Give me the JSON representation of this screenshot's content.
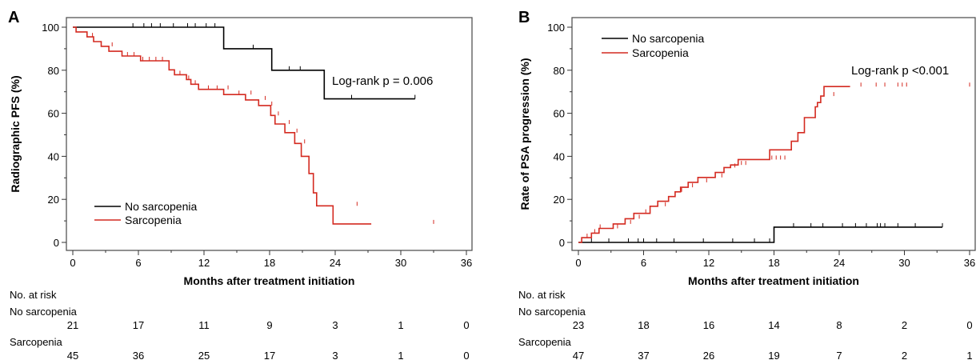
{
  "chart_data": [
    {
      "type": "line",
      "panel_label": "A",
      "xlabel": "Months after treatment initiation",
      "ylabel": "Radiographic PFS (%)",
      "xlim": [
        0,
        36
      ],
      "ylim": [
        0,
        100
      ],
      "xticks": [
        "0",
        "6",
        "12",
        "18",
        "24",
        "30",
        "36"
      ],
      "yticks": [
        "0",
        "20",
        "40",
        "60",
        "80",
        "100"
      ],
      "grid": false,
      "legend_position": "bottom-left",
      "annotation": "Log-rank p = 0.006",
      "series": [
        {
          "name": "No sarcopenia",
          "color": "#000000",
          "step_x": [
            0,
            13.8,
            13.8,
            18.2,
            18.2,
            23.0,
            23.0,
            31.3
          ],
          "step_y": [
            100,
            100,
            90,
            90,
            80,
            80,
            66.7,
            66.7
          ],
          "censor_x": [
            5.5,
            6.5,
            7.2,
            8.0,
            9.2,
            10.5,
            11.2,
            12.2,
            13.0,
            16.5,
            19.8,
            20.8,
            25.5,
            31.3
          ],
          "censor_y": [
            100,
            100,
            100,
            100,
            100,
            100,
            100,
            100,
            100,
            90,
            80,
            80,
            66.7,
            66.7
          ]
        },
        {
          "name": "Sarcopenia",
          "color": "#d42a20",
          "step_x": [
            0,
            0.3,
            0.3,
            1.3,
            1.3,
            1.9,
            1.9,
            2.6,
            2.6,
            3.3,
            3.3,
            4.5,
            4.5,
            6.2,
            6.2,
            8.8,
            8.8,
            9.3,
            9.3,
            10.4,
            10.4,
            10.8,
            10.8,
            11.5,
            11.5,
            13.8,
            13.8,
            15.8,
            15.8,
            17.0,
            17.0,
            18.1,
            18.1,
            18.5,
            18.5,
            19.4,
            19.4,
            20.3,
            20.3,
            20.9,
            20.9,
            21.6,
            21.6,
            22.0,
            22.0,
            22.3,
            22.3,
            23.8,
            23.8,
            27.3,
            27.3,
            33.0
          ],
          "step_y": [
            100,
            100,
            97.8,
            97.8,
            95.5,
            95.5,
            93.3,
            93.3,
            91.1,
            91.1,
            88.8,
            88.8,
            86.6,
            86.6,
            84.4,
            84.4,
            80.2,
            80.2,
            77.9,
            77.9,
            75.7,
            75.7,
            73.5,
            73.5,
            71.1,
            71.1,
            68.7,
            68.7,
            66.2,
            66.2,
            63.6,
            63.6,
            59.0,
            59.0,
            55.0,
            55.0,
            51.0,
            51.0,
            46.0,
            46.0,
            40.0,
            40.0,
            32.0,
            32.0,
            23.0,
            23.0,
            17.0,
            17.0,
            8.6,
            8.6
          ],
          "censor_x": [
            1.8,
            3.6,
            5.0,
            5.6,
            6.4,
            7.0,
            7.6,
            8.2,
            9.8,
            10.6,
            11.2,
            12.4,
            13.2,
            14.2,
            15.2,
            16.3,
            17.6,
            18.2,
            18.8,
            19.8,
            20.5,
            21.2,
            26.0,
            33.0
          ],
          "censor_y": [
            95.5,
            91.1,
            86.6,
            86.6,
            84.4,
            84.4,
            84.4,
            84.4,
            77.9,
            75.7,
            73.5,
            71.1,
            71.1,
            71.1,
            68.7,
            68.7,
            66.2,
            63.6,
            59.0,
            55.0,
            51.0,
            46.0,
            17.0,
            8.6
          ]
        }
      ],
      "risk_table": {
        "header": "No. at risk",
        "times": [
          0,
          6,
          12,
          18,
          24,
          30,
          36
        ],
        "rows": [
          {
            "label": "No sarcopenia",
            "values": [
              "21",
              "17",
              "11",
              "9",
              "3",
              "1",
              "0"
            ]
          },
          {
            "label": "Sarcopenia",
            "values": [
              "45",
              "36",
              "25",
              "17",
              "3",
              "1",
              "0"
            ]
          }
        ]
      }
    },
    {
      "type": "line",
      "panel_label": "B",
      "xlabel": "Months after treatment initiation",
      "ylabel": "Rate of PSA progression (%)",
      "xlim": [
        0,
        36
      ],
      "ylim": [
        0,
        100
      ],
      "xticks": [
        "0",
        "6",
        "12",
        "18",
        "24",
        "30",
        "36"
      ],
      "yticks": [
        "0",
        "20",
        "40",
        "60",
        "80",
        "100"
      ],
      "grid": false,
      "legend_position": "top-left",
      "annotation": "Log-rank p <0.001",
      "series": [
        {
          "name": "No sarcopenia",
          "color": "#000000",
          "step_x": [
            0,
            18.0,
            18.0,
            33.5
          ],
          "step_y": [
            0,
            0,
            7.1,
            7.1
          ],
          "censor_x": [
            1.2,
            2.8,
            4.6,
            5.5,
            6.0,
            7.2,
            8.8,
            11.5,
            14.2,
            16.2,
            17.6,
            19.8,
            21.4,
            22.5,
            24.3,
            25.5,
            26.5,
            27.5,
            27.8,
            28.2,
            29.4,
            31.0,
            33.5
          ],
          "censor_y": [
            0,
            0,
            0,
            0,
            0,
            0,
            0,
            0,
            0,
            0,
            0,
            7.1,
            7.1,
            7.1,
            7.1,
            7.1,
            7.1,
            7.1,
            7.1,
            7.1,
            7.1,
            7.1,
            7.1
          ]
        },
        {
          "name": "Sarcopenia",
          "color": "#d42a20",
          "step_x": [
            0,
            0.3,
            0.3,
            1.2,
            1.2,
            1.9,
            1.9,
            3.2,
            3.2,
            4.3,
            4.3,
            5.1,
            5.1,
            6.6,
            6.6,
            7.3,
            7.3,
            8.3,
            8.3,
            8.9,
            8.9,
            9.4,
            9.4,
            10.1,
            10.1,
            11.0,
            11.0,
            12.6,
            12.6,
            13.4,
            13.4,
            14.0,
            14.0,
            14.7,
            14.7,
            17.6,
            17.6,
            19.6,
            19.6,
            20.2,
            20.2,
            20.8,
            20.8,
            21.8,
            21.8,
            22.0,
            22.0,
            22.3,
            22.3,
            22.6,
            22.6,
            25.0,
            25.0,
            36.0
          ],
          "step_y": [
            0,
            0,
            2.2,
            2.2,
            4.3,
            4.3,
            6.5,
            6.5,
            8.6,
            8.6,
            11.0,
            11.0,
            13.5,
            13.5,
            16.8,
            16.8,
            19.1,
            19.1,
            21.3,
            21.3,
            23.5,
            23.5,
            25.6,
            25.6,
            27.9,
            27.9,
            30.2,
            30.2,
            32.5,
            32.5,
            34.8,
            34.8,
            36.0,
            36.0,
            38.5,
            38.5,
            43.0,
            43.0,
            47.0,
            47.0,
            51.0,
            51.0,
            58.0,
            58.0,
            63.0,
            63.0,
            65.0,
            65.0,
            68.0,
            68.0,
            72.4,
            72.4
          ],
          "censor_x": [
            0.8,
            1.5,
            2.0,
            3.6,
            4.8,
            5.6,
            6.2,
            8.0,
            9.5,
            10.5,
            11.8,
            13.2,
            14.4,
            15.0,
            15.4,
            17.8,
            18.2,
            18.6,
            19.0,
            23.5,
            26.0,
            27.4,
            28.2,
            29.4,
            29.8,
            30.2,
            36.0
          ],
          "censor_y": [
            2.2,
            4.3,
            6.5,
            6.5,
            8.6,
            11.0,
            13.5,
            16.8,
            23.5,
            25.6,
            27.9,
            30.2,
            34.8,
            36.0,
            36.0,
            38.5,
            38.5,
            38.5,
            38.5,
            68.0,
            72.4,
            72.4,
            72.4,
            72.4,
            72.4,
            72.4,
            72.4
          ]
        }
      ],
      "risk_table": {
        "header": "No. at risk",
        "times": [
          0,
          6,
          12,
          18,
          24,
          30,
          36
        ],
        "rows": [
          {
            "label": "No sarcopenia",
            "values": [
              "23",
              "18",
              "16",
              "14",
              "8",
              "2",
              "0"
            ]
          },
          {
            "label": "Sarcopenia",
            "values": [
              "47",
              "37",
              "26",
              "19",
              "7",
              "2",
              "1"
            ]
          }
        ]
      }
    }
  ]
}
